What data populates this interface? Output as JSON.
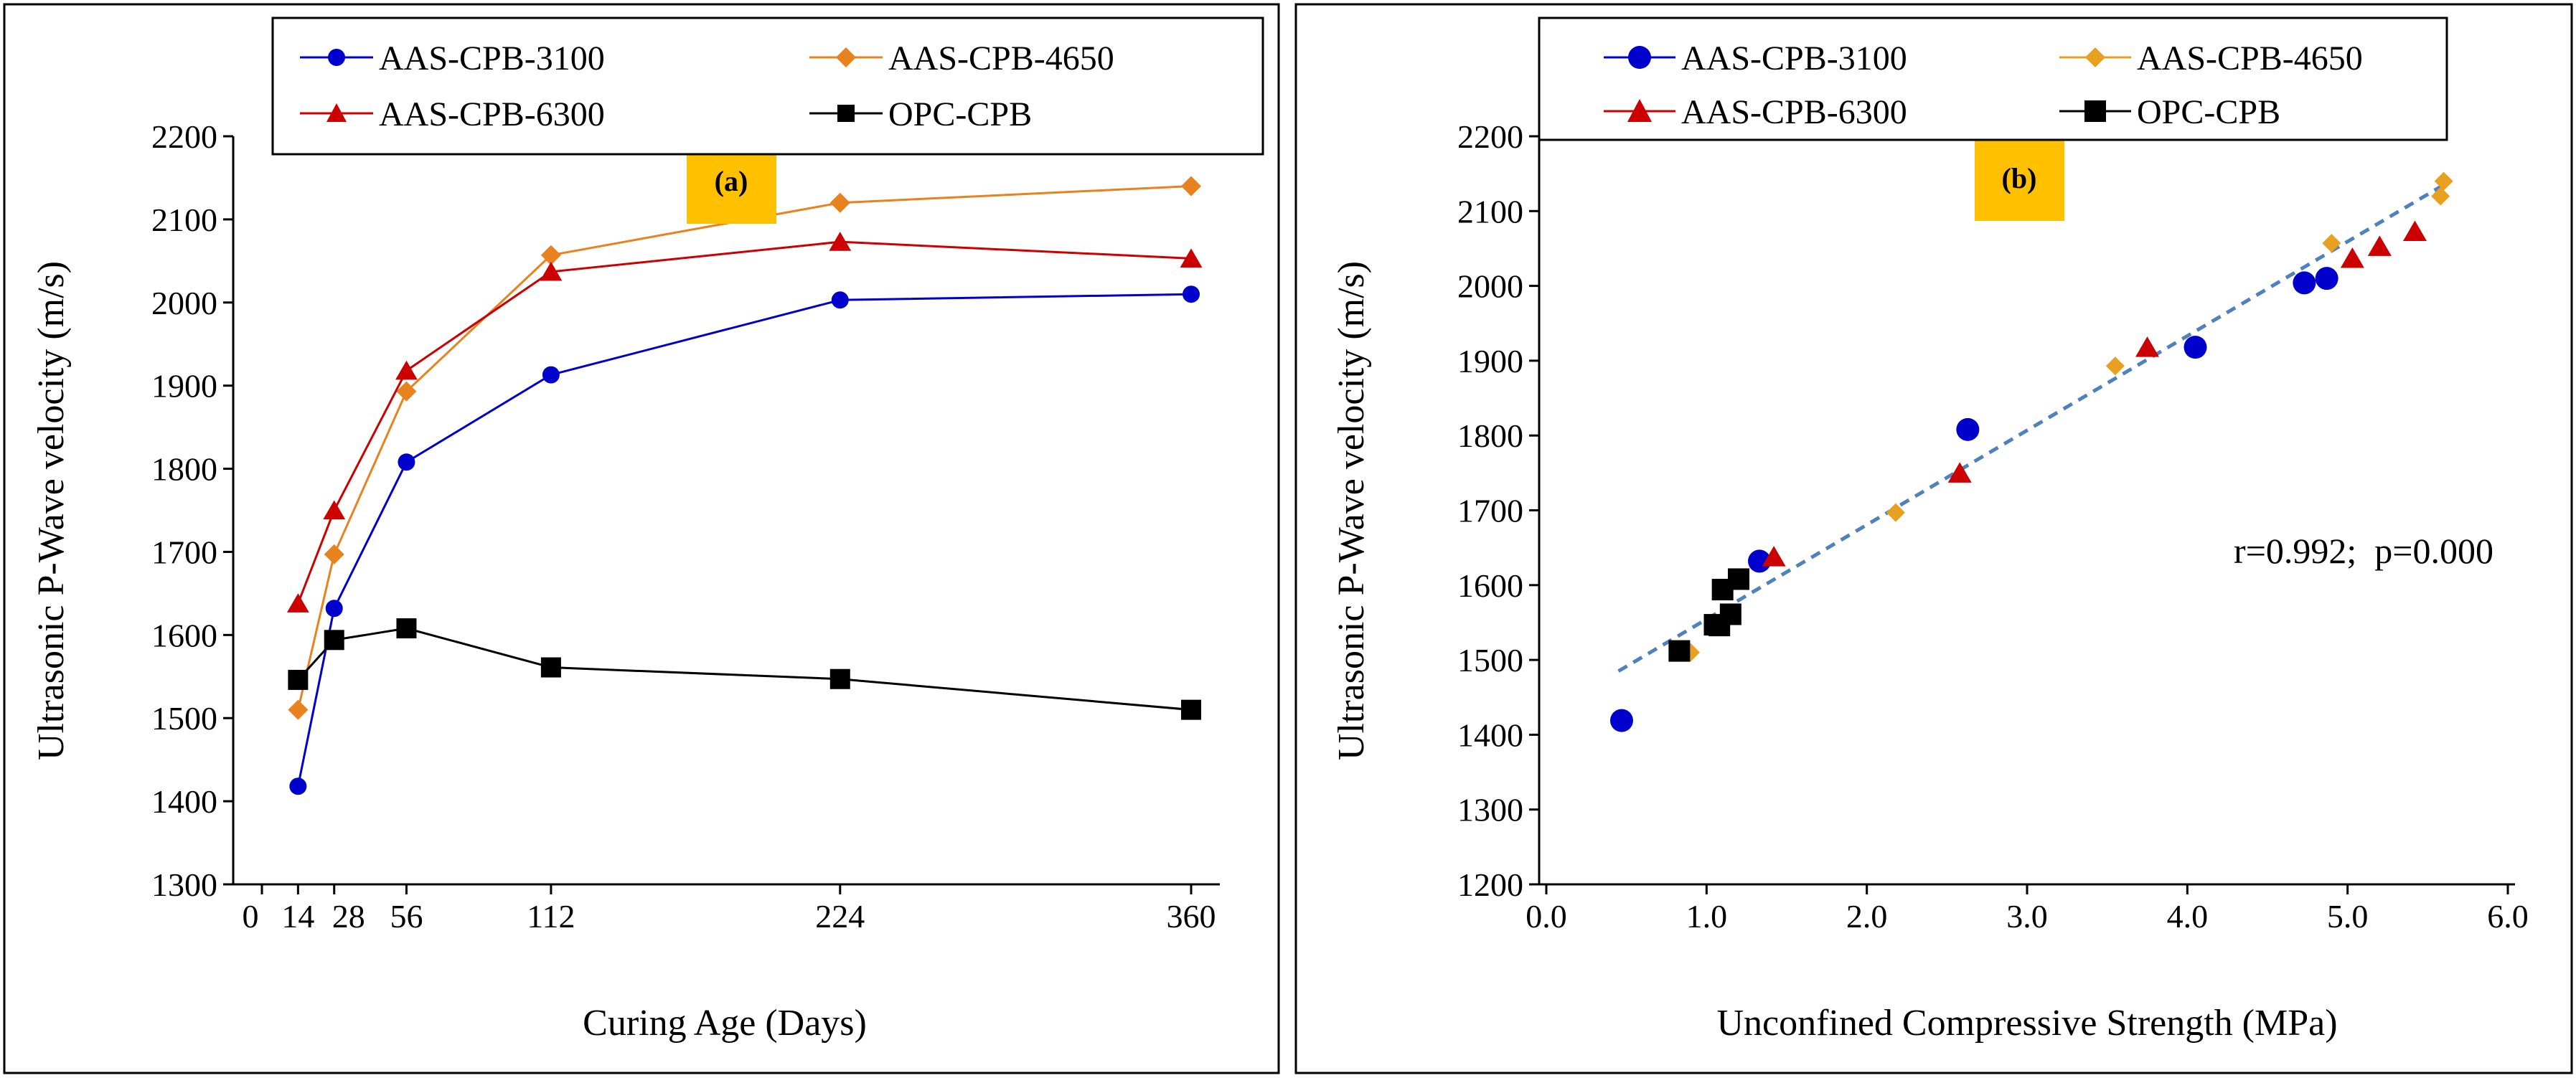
{
  "chart_data": [
    {
      "type": "line",
      "panel_label": "(a)",
      "xlabel": "Curing Age (Days)",
      "ylabel": "Ultrasonic P-Wave velocity (m/s)",
      "xlim": [
        0,
        360
      ],
      "ylim": [
        1300,
        2200
      ],
      "x_ticks": [
        0,
        14,
        28,
        56,
        112,
        224,
        360
      ],
      "x_tick_labels": [
        "0",
        "14",
        "28",
        "56",
        "112",
        "224",
        "360"
      ],
      "y_ticks": [
        1300,
        1400,
        1500,
        1600,
        1700,
        1800,
        1900,
        2000,
        2100,
        2200
      ],
      "y_tick_labels": [
        "1300",
        "1400",
        "1500",
        "1600",
        "1700",
        "1800",
        "1900",
        "2000",
        "2100",
        "2200"
      ],
      "grid": false,
      "legend_position": "top",
      "x": [
        14,
        28,
        56,
        112,
        224,
        360
      ],
      "series": [
        {
          "name": "AAS-CPB-3100",
          "color": "#0000cc",
          "marker": "circle",
          "values": [
            1418,
            1632,
            1808,
            1913,
            2003,
            2010
          ]
        },
        {
          "name": "AAS-CPB-4650",
          "color": "#e8821e",
          "marker": "diamond",
          "values": [
            1510,
            1697,
            1893,
            2057,
            2120,
            2140
          ]
        },
        {
          "name": "AAS-CPB-6300",
          "color": "#cc0000",
          "marker": "triangle",
          "values": [
            1638,
            1750,
            1918,
            2037,
            2073,
            2053
          ]
        },
        {
          "name": "OPC-CPB",
          "color": "#000000",
          "marker": "square",
          "values": [
            1546,
            1594,
            1608,
            1561,
            1547,
            1510
          ]
        }
      ]
    },
    {
      "type": "scatter",
      "panel_label": "(b)",
      "xlabel": "Unconfined Compressive Strength (MPa)",
      "ylabel": "Ultrasonic P-Wave velocity (m/s)",
      "xlim": [
        0,
        6
      ],
      "ylim": [
        1200,
        2200
      ],
      "x_ticks": [
        0,
        1,
        2,
        3,
        4,
        5,
        6
      ],
      "x_tick_labels": [
        "0.0",
        "1.0",
        "2.0",
        "3.0",
        "4.0",
        "5.0",
        "6.0"
      ],
      "y_ticks": [
        1200,
        1300,
        1400,
        1500,
        1600,
        1700,
        1800,
        1900,
        2000,
        2100,
        2200
      ],
      "y_tick_labels": [
        "1200",
        "1300",
        "1400",
        "1500",
        "1600",
        "1700",
        "1800",
        "1900",
        "2000",
        "2100",
        "2200"
      ],
      "grid": false,
      "legend_position": "top",
      "annotation": "r=0.992;  p=0.000",
      "trendline": {
        "x": [
          0.45,
          5.6
        ],
        "y": [
          1485,
          2135
        ],
        "color": "#4f81bd",
        "style": "dashed"
      },
      "series": [
        {
          "name": "AAS-CPB-3100",
          "color": "#0000cc",
          "marker": "circle",
          "points": [
            [
              0.47,
              1419
            ],
            [
              1.33,
              1632
            ],
            [
              2.63,
              1808
            ],
            [
              4.05,
              1918
            ],
            [
              4.73,
              2004
            ],
            [
              4.87,
              2010
            ]
          ]
        },
        {
          "name": "AAS-CPB-4650",
          "color": "#e8a020",
          "marker": "diamond",
          "points": [
            [
              0.9,
              1510
            ],
            [
              2.18,
              1697
            ],
            [
              3.55,
              1893
            ],
            [
              4.9,
              2057
            ],
            [
              5.58,
              2120
            ],
            [
              5.6,
              2140
            ]
          ]
        },
        {
          "name": "AAS-CPB-6300",
          "color": "#cc0000",
          "marker": "triangle",
          "points": [
            [
              1.42,
              1638
            ],
            [
              2.58,
              1750
            ],
            [
              3.75,
              1918
            ],
            [
              5.03,
              2037
            ],
            [
              5.2,
              2053
            ],
            [
              5.42,
              2073
            ]
          ]
        },
        {
          "name": "OPC-CPB",
          "color": "#000000",
          "marker": "square",
          "points": [
            [
              0.83,
              1512
            ],
            [
              1.05,
              1547
            ],
            [
              1.08,
              1546
            ],
            [
              1.1,
              1594
            ],
            [
              1.15,
              1561
            ],
            [
              1.2,
              1608
            ]
          ]
        }
      ]
    }
  ]
}
